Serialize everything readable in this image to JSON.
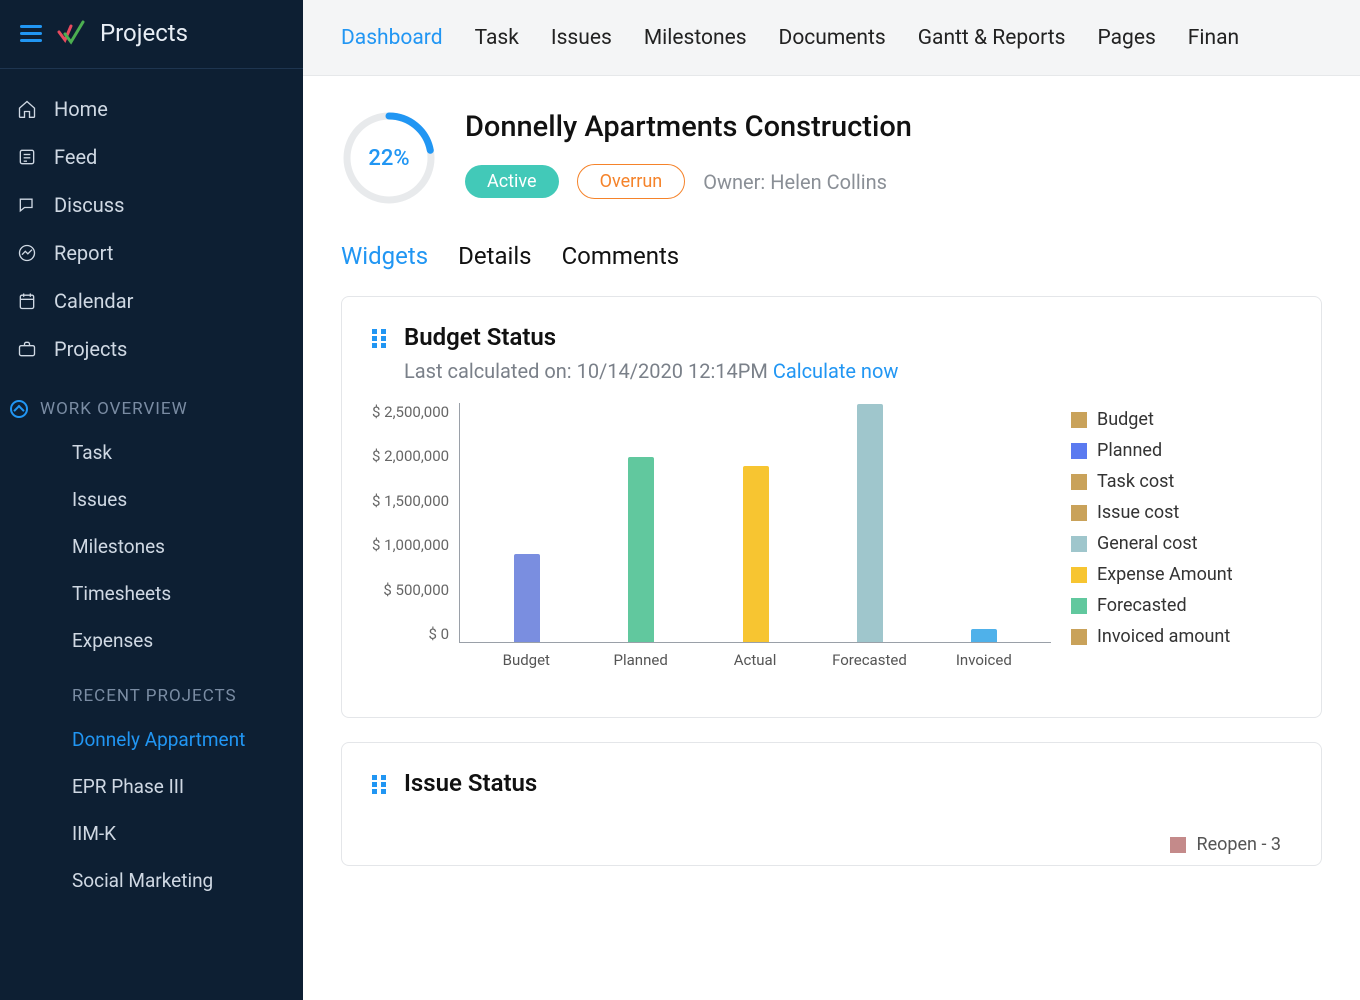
{
  "sidebar": {
    "app_title": "Projects",
    "nav": [
      {
        "label": "Home",
        "icon": "home"
      },
      {
        "label": "Feed",
        "icon": "feed"
      },
      {
        "label": "Discuss",
        "icon": "discuss"
      },
      {
        "label": "Report",
        "icon": "report"
      },
      {
        "label": "Calendar",
        "icon": "calendar"
      },
      {
        "label": "Projects",
        "icon": "briefcase"
      }
    ],
    "work_overview_label": "WORK OVERVIEW",
    "work_items": [
      "Task",
      "Issues",
      "Milestones",
      "Timesheets",
      "Expenses"
    ],
    "recent_label": "RECENT PROJECTS",
    "recent_projects": [
      "Donnely Appartment",
      "EPR Phase III",
      "IIM-K",
      "Social Marketing"
    ],
    "active_recent_index": 0
  },
  "topnav": {
    "tabs": [
      "Dashboard",
      "Task",
      "Issues",
      "Milestones",
      "Documents",
      "Gantt & Reports",
      "Pages",
      "Finan"
    ],
    "active_index": 0
  },
  "project": {
    "title": "Donnelly Apartments Construction",
    "progress_pct": 22,
    "progress_label": "22%",
    "ring_bg": "#e8eaec",
    "ring_fg": "#2196f3",
    "status_badge": "Active",
    "overrun_badge": "Overrun",
    "owner_label": "Owner: Helen Collins"
  },
  "subtabs": {
    "items": [
      "Widgets",
      "Details",
      "Comments"
    ],
    "active_index": 0
  },
  "budget_card": {
    "title": "Budget Status",
    "sub_prefix": "Last calculated on: ",
    "timestamp": "10/14/2020 12:14PM",
    "calc_link": "Calculate now",
    "chart": {
      "type": "bar",
      "ylim": [
        0,
        2700000
      ],
      "y_ticks": [
        "$ 2,500,000",
        "$ 2,000,000",
        "$ 1,500,000",
        "$ 1,000,000",
        "$ 500,000",
        "$ 0"
      ],
      "x_labels": [
        "Budget",
        "Planned",
        "Actual",
        "Forecasted",
        "Invoiced"
      ],
      "bars": [
        {
          "value": 1000000,
          "color": "#7a8ee0"
        },
        {
          "value": 2100000,
          "color": "#61c89e"
        },
        {
          "value": 2000000,
          "color": "#f7c531"
        },
        {
          "value": 2700000,
          "color": "#9fc6cc"
        },
        {
          "value": 150000,
          "color": "#4fb1ea"
        }
      ],
      "legend": [
        {
          "label": "Budget",
          "color": "#c9a25a"
        },
        {
          "label": "Planned",
          "color": "#5a7af0"
        },
        {
          "label": "Task cost",
          "color": "#c9a25a"
        },
        {
          "label": "Issue cost",
          "color": "#c9a25a"
        },
        {
          "label": "General cost",
          "color": "#9fc6cc"
        },
        {
          "label": "Expense Amount",
          "color": "#f7c531"
        },
        {
          "label": "Forecasted",
          "color": "#61c89e"
        },
        {
          "label": "Invoiced amount",
          "color": "#c9a25a"
        }
      ]
    }
  },
  "issue_card": {
    "title": "Issue Status",
    "legend": [
      {
        "label": "Reopen - 3",
        "color": "#c48a8a"
      }
    ]
  },
  "colors": {
    "sidebar_bg": "#0d1f33",
    "accent": "#2196f3",
    "topnav_bg": "#f4f5f6"
  }
}
